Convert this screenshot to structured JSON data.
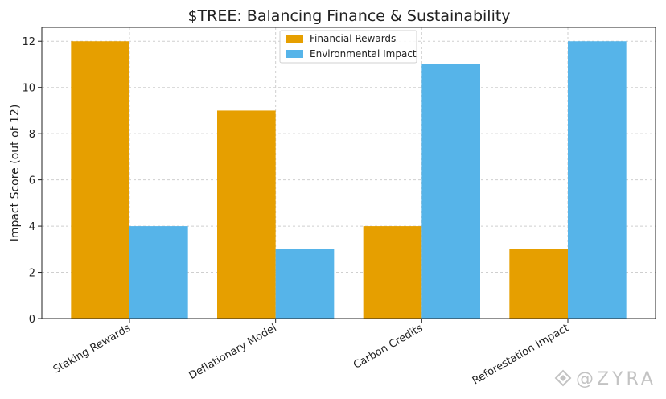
{
  "chart_data": {
    "type": "bar",
    "title": "$TREE: Balancing Finance & Sustainability",
    "xlabel": "",
    "ylabel": "Impact Score (out of 12)",
    "categories": [
      "Staking Rewards",
      "Deflationary Model",
      "Carbon Credits",
      "Reforestation Impact"
    ],
    "series": [
      {
        "name": "Financial Rewards",
        "color": "#E69F00",
        "values": [
          12,
          9,
          4,
          3
        ]
      },
      {
        "name": "Environmental Impact",
        "color": "#56B4E9",
        "values": [
          4,
          3,
          11,
          12
        ]
      }
    ],
    "ylim": [
      0,
      12.6
    ],
    "yticks": [
      "0",
      "2",
      "4",
      "6",
      "8",
      "10",
      "12"
    ],
    "grid": true,
    "legend_position": "top-center"
  },
  "watermark": {
    "text": "@ZYRA"
  }
}
